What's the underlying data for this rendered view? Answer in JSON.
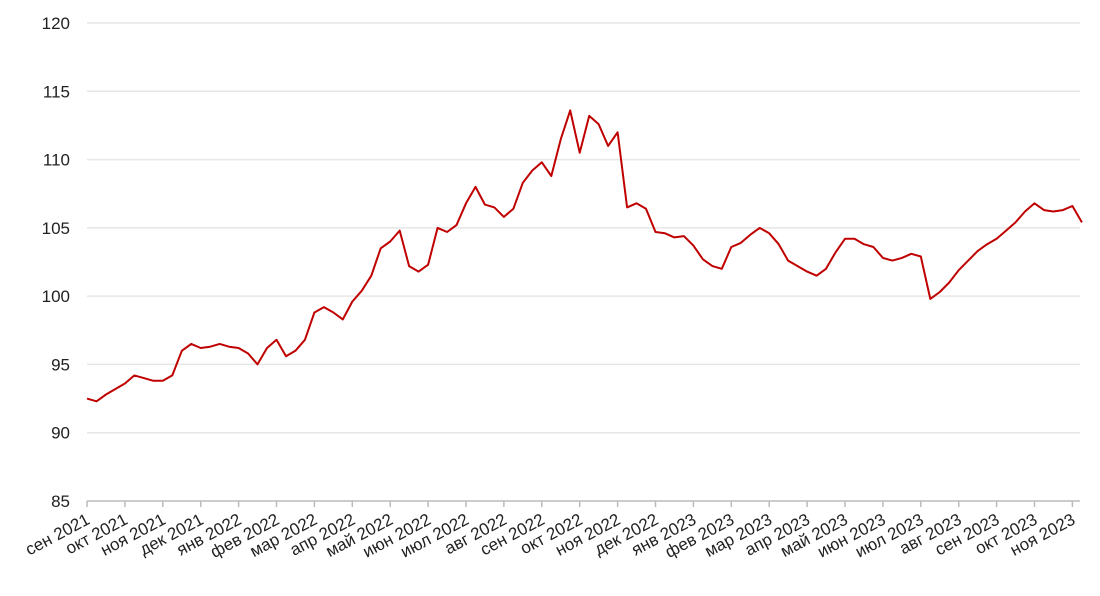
{
  "chart_data": {
    "type": "line",
    "categories": [
      "сен 2021",
      null,
      null,
      null,
      "окт 2021",
      null,
      null,
      null,
      "ноя 2021",
      null,
      null,
      null,
      "дек 2021",
      null,
      null,
      null,
      "янв 2022",
      null,
      null,
      null,
      "фев 2022",
      null,
      null,
      null,
      "мар 2022",
      null,
      null,
      null,
      "апр 2022",
      null,
      null,
      null,
      "май 2022",
      null,
      null,
      null,
      "июн 2022",
      null,
      null,
      null,
      "июл 2022",
      null,
      null,
      null,
      "авг 2022",
      null,
      null,
      null,
      "сен 2022",
      null,
      null,
      null,
      "окт 2022",
      null,
      null,
      null,
      "ноя 2022",
      null,
      null,
      null,
      "дек 2022",
      null,
      null,
      null,
      "янв 2023",
      null,
      null,
      null,
      "фев 2023",
      null,
      null,
      null,
      "мар 2023",
      null,
      null,
      null,
      "апр 2023",
      null,
      null,
      null,
      "май 2023",
      null,
      null,
      null,
      "июн 2023",
      null,
      null,
      null,
      "июл 2023",
      null,
      null,
      null,
      "авг 2023",
      null,
      null,
      null,
      "сен 2023",
      null,
      null,
      null,
      "окт 2023",
      null,
      null,
      null,
      "ноя 2023",
      null
    ],
    "values": [
      92.5,
      92.3,
      92.8,
      93.2,
      93.6,
      94.2,
      94.0,
      93.8,
      93.8,
      94.2,
      96.0,
      96.5,
      96.2,
      96.3,
      96.5,
      96.3,
      96.2,
      95.8,
      95.0,
      96.2,
      96.8,
      95.6,
      96.0,
      96.8,
      98.8,
      99.2,
      98.8,
      98.3,
      99.6,
      100.4,
      101.5,
      103.5,
      104.0,
      104.8,
      102.2,
      101.8,
      102.3,
      105.0,
      104.7,
      105.2,
      106.8,
      108.0,
      106.7,
      106.5,
      105.8,
      106.4,
      108.3,
      109.2,
      109.8,
      108.8,
      111.5,
      113.6,
      110.5,
      113.2,
      112.6,
      111.0,
      112.0,
      106.5,
      106.8,
      106.4,
      104.7,
      104.6,
      104.3,
      104.4,
      103.7,
      102.7,
      102.2,
      102.0,
      103.6,
      103.9,
      104.5,
      105.0,
      104.6,
      103.8,
      102.6,
      102.2,
      101.8,
      101.5,
      102.0,
      103.2,
      104.2,
      104.2,
      103.8,
      103.6,
      102.8,
      102.6,
      102.8,
      103.1,
      102.9,
      99.8,
      100.3,
      101.0,
      101.9,
      102.6,
      103.3,
      103.8,
      104.2,
      104.8,
      105.4,
      106.2,
      106.8,
      106.3,
      106.2,
      106.3,
      106.6,
      105.4
    ],
    "color": "#c00000",
    "ylim": [
      85,
      120
    ],
    "yticks": [
      85,
      90,
      95,
      100,
      105,
      110,
      115,
      120
    ],
    "grid": true
  }
}
